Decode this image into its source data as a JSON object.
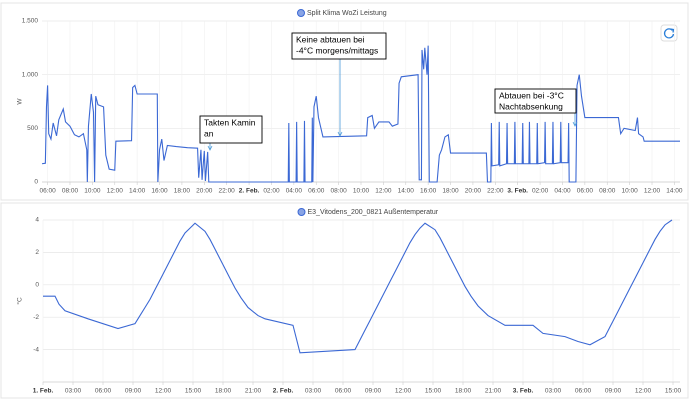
{
  "chart_data": [
    {
      "type": "line",
      "ylabel": "W",
      "grid": true,
      "series": [
        {
          "name": "Split Klima WoZi Leistung",
          "color": "#3b68d4",
          "values": [
            170,
            175,
            700,
            900,
            450,
            400,
            550,
            430,
            580,
            680,
            560,
            520,
            440,
            420,
            450,
            300,
            0,
            520,
            820,
            650,
            0,
            800,
            720,
            700,
            250,
            120,
            110,
            380,
            385,
            880,
            900,
            820,
            820,
            0,
            300,
            400,
            200,
            340,
            330,
            320,
            315,
            40,
            300,
            20,
            290,
            10,
            280,
            0,
            0,
            550,
            0,
            0,
            560,
            0,
            0,
            570,
            0,
            0,
            600,
            0,
            700,
            800,
            600,
            420,
            430,
            600,
            620,
            500,
            560,
            560,
            520,
            540,
            920,
            980,
            1000,
            20,
            20,
            1230,
            1050,
            1250,
            1000,
            1270,
            0,
            0,
            250,
            300,
            420,
            440,
            270,
            270,
            0,
            0,
            550,
            150,
            160,
            560,
            150,
            170,
            550,
            170,
            170,
            560,
            170,
            170,
            550,
            170,
            170,
            560,
            170,
            170,
            550,
            170,
            180,
            560,
            170,
            170,
            560,
            170,
            180,
            560,
            180,
            180,
            550,
            0,
            0,
            900,
            1000,
            800,
            600,
            600,
            450,
            500,
            480,
            600,
            450,
            420,
            380,
            380
          ]
        }
      ],
      "x": [
        5.5,
        5.8,
        5.9,
        6.0,
        6.1,
        6.3,
        6.5,
        6.8,
        7.0,
        7.4,
        7.6,
        8.0,
        8.4,
        8.8,
        9.2,
        9.5,
        9.55,
        9.65,
        9.9,
        10.1,
        10.2,
        10.3,
        10.5,
        11.0,
        11.2,
        11.5,
        12.0,
        12.1,
        13.5,
        13.6,
        13.8,
        14.0,
        15.8,
        15.85,
        16.0,
        16.2,
        16.4,
        16.7,
        17.5,
        18.5,
        19.4,
        19.5,
        19.7,
        19.8,
        20.0,
        20.1,
        20.3,
        20.4,
        27.5,
        27.55,
        27.6,
        28.2,
        28.25,
        28.3,
        28.9,
        28.95,
        29.0,
        29.6,
        29.65,
        29.7,
        29.8,
        30.0,
        30.2,
        30.6,
        34.5,
        34.6,
        35.0,
        35.2,
        35.6,
        36.5,
        36.8,
        37.3,
        37.4,
        37.6,
        39.1,
        39.2,
        39.4,
        39.45,
        39.6,
        39.7,
        39.9,
        40.0,
        40.1,
        40.8,
        41.0,
        41.2,
        41.5,
        41.8,
        42.0,
        45.2,
        45.3,
        45.6,
        45.65,
        45.7,
        46.3,
        46.35,
        46.4,
        47.0,
        47.05,
        47.1,
        47.7,
        47.75,
        47.8,
        48.4,
        48.45,
        48.5,
        49.0,
        49.05,
        49.1,
        49.7,
        49.75,
        49.8,
        50.4,
        50.45,
        50.5,
        51.1,
        51.15,
        51.2,
        51.8,
        51.85,
        51.9,
        52.5,
        52.55,
        52.6,
        53.2,
        53.3,
        53.5,
        53.7,
        54.0,
        57.0,
        57.2,
        57.5,
        58.5,
        58.7,
        58.8,
        59.2,
        59.3,
        62.5
      ],
      "xlim": [
        5.5,
        62.5
      ],
      "ylim": [
        0,
        1500
      ],
      "yticks": [
        0,
        500,
        {
          "value": 1000,
          "label": "1.000"
        },
        {
          "value": 1500,
          "label": "1.500"
        }
      ],
      "xticks": [
        {
          "value": 6,
          "label": "06:00"
        },
        {
          "value": 8,
          "label": "08:00"
        },
        {
          "value": 10,
          "label": "10:00"
        },
        {
          "value": 12,
          "label": "12:00"
        },
        {
          "value": 14,
          "label": "14:00"
        },
        {
          "value": 16,
          "label": "16:00"
        },
        {
          "value": 18,
          "label": "18:00"
        },
        {
          "value": 20,
          "label": "20:00"
        },
        {
          "value": 22,
          "label": "22:00"
        },
        {
          "value": 24,
          "label": "2. Feb."
        },
        {
          "value": 26,
          "label": "02:00"
        },
        {
          "value": 28,
          "label": "04:00"
        },
        {
          "value": 30,
          "label": "06:00"
        },
        {
          "value": 32,
          "label": "08:00"
        },
        {
          "value": 34,
          "label": "10:00"
        },
        {
          "value": 36,
          "label": "12:00"
        },
        {
          "value": 38,
          "label": "14:00"
        },
        {
          "value": 40,
          "label": "16:00"
        },
        {
          "value": 42,
          "label": "18:00"
        },
        {
          "value": 44,
          "label": "20:00"
        },
        {
          "value": 46,
          "label": "22:00"
        },
        {
          "value": 48,
          "label": "3. Feb."
        },
        {
          "value": 50,
          "label": "02:00"
        },
        {
          "value": 52,
          "label": "04:00"
        },
        {
          "value": 54,
          "label": "06:00"
        },
        {
          "value": 56,
          "label": "08:00"
        },
        {
          "value": 58,
          "label": "10:00"
        },
        {
          "value": 60,
          "label": "12:00"
        },
        {
          "value": 62,
          "label": "14:00"
        }
      ],
      "annotations": [
        {
          "lines": [
            "Takten Kamin",
            "an"
          ]
        },
        {
          "lines": [
            "Keine abtauen bei",
            "-4°C morgens/mittags"
          ]
        },
        {
          "lines": [
            "Abtauen bei -3°C",
            "Nachtabsenkung"
          ]
        }
      ]
    },
    {
      "type": "line",
      "ylabel": "°C",
      "grid": true,
      "series": [
        {
          "name": "E3_Vitodens_200_0821 Außentemperatur",
          "color": "#3b68d4",
          "values": [
            -0.7,
            -0.7,
            -1.2,
            -1.6,
            -2.1,
            -2.7,
            -2.4,
            -1.9,
            -1.4,
            -0.9,
            -0.3,
            0.3,
            0.9,
            1.5,
            2.1,
            2.7,
            3.2,
            3.5,
            3.8,
            3.3,
            2.8,
            2.2,
            1.6,
            1.0,
            0.4,
            -0.2,
            -0.8,
            -1.4,
            -1.9,
            -2.1,
            -2.5,
            -4.2,
            -4.0,
            -3.4,
            -2.8,
            -2.2,
            -1.6,
            -1.0,
            -0.4,
            0.2,
            0.8,
            1.4,
            2.0,
            2.6,
            3.1,
            3.5,
            3.8,
            3.4,
            2.9,
            2.3,
            1.7,
            1.1,
            0.5,
            -0.1,
            -0.7,
            -1.3,
            -1.9,
            -2.5,
            -2.5,
            -3.0,
            -3.2,
            -3.5,
            -3.7,
            -3.2,
            -2.6,
            -2.0,
            -1.4,
            -0.8,
            -0.2,
            0.4,
            1.0,
            1.6,
            2.2,
            2.8,
            3.3,
            3.7,
            4.0
          ]
        }
      ],
      "x": [
        0,
        1.2,
        1.6,
        2.2,
        4.5,
        7.5,
        9.2,
        9.7,
        10.2,
        10.7,
        11.2,
        11.7,
        12.2,
        12.7,
        13.2,
        13.7,
        14.2,
        14.7,
        15.2,
        16.2,
        16.7,
        17.2,
        17.7,
        18.2,
        18.7,
        19.2,
        19.8,
        20.5,
        21.5,
        22.2,
        25,
        25.7,
        31.2,
        31.7,
        32.2,
        32.7,
        33.2,
        33.7,
        34.2,
        34.7,
        35.2,
        35.7,
        36.2,
        36.7,
        37.2,
        37.7,
        38.2,
        39.2,
        39.7,
        40.2,
        40.7,
        41.2,
        41.7,
        42.2,
        42.8,
        43.5,
        44.5,
        46.2,
        49,
        50,
        52.2,
        53.5,
        54.7,
        56.2,
        56.7,
        57.2,
        57.7,
        58.2,
        58.7,
        59.2,
        59.7,
        60.2,
        60.7,
        61.2,
        61.7,
        62.2,
        62.9
      ],
      "xlim": [
        0,
        63.7
      ],
      "ylim": [
        -6,
        4
      ],
      "yticks": [
        -4,
        -2,
        0,
        2,
        4
      ],
      "xticks": [
        {
          "value": 0,
          "label": "1. Feb."
        },
        {
          "value": 3,
          "label": "03:00"
        },
        {
          "value": 6,
          "label": "06:00"
        },
        {
          "value": 9,
          "label": "09:00"
        },
        {
          "value": 12,
          "label": "12:00"
        },
        {
          "value": 15,
          "label": "15:00"
        },
        {
          "value": 18,
          "label": "18:00"
        },
        {
          "value": 21,
          "label": "21:00"
        },
        {
          "value": 24,
          "label": "2. Feb."
        },
        {
          "value": 27,
          "label": "03:00"
        },
        {
          "value": 30,
          "label": "06:00"
        },
        {
          "value": 33,
          "label": "09:00"
        },
        {
          "value": 36,
          "label": "12:00"
        },
        {
          "value": 39,
          "label": "15:00"
        },
        {
          "value": 42,
          "label": "18:00"
        },
        {
          "value": 45,
          "label": "21:00"
        },
        {
          "value": 48,
          "label": "3. Feb."
        },
        {
          "value": 51,
          "label": "03:00"
        },
        {
          "value": 54,
          "label": "06:00"
        },
        {
          "value": 57,
          "label": "09:00"
        },
        {
          "value": 60,
          "label": "12:00"
        },
        {
          "value": 63,
          "label": "15:00"
        }
      ]
    }
  ]
}
